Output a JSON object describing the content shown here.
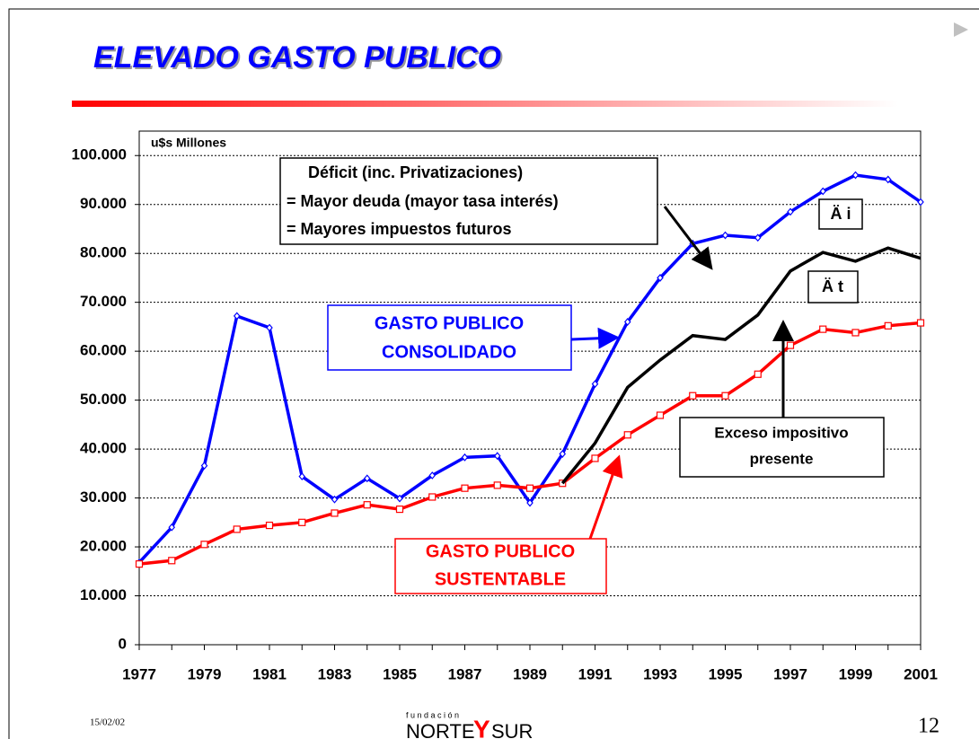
{
  "chart_data": {
    "type": "line",
    "title": "ELEVADO GASTO PUBLICO",
    "y_label": "u$s Millones",
    "x": [
      1977,
      1978,
      1979,
      1980,
      1981,
      1982,
      1983,
      1984,
      1985,
      1986,
      1987,
      1988,
      1989,
      1990,
      1991,
      1992,
      1993,
      1994,
      1995,
      1996,
      1997,
      1998,
      1999,
      2000,
      2001
    ],
    "xlim": [
      1977,
      2001
    ],
    "xticks": [
      1977,
      1979,
      1981,
      1983,
      1985,
      1987,
      1989,
      1991,
      1993,
      1995,
      1997,
      1999,
      2001
    ],
    "ylim": [
      0,
      105000
    ],
    "yticks": [
      0,
      {
        "value": 10000,
        "label": "10.000"
      },
      {
        "value": 20000,
        "label": "20.000"
      },
      {
        "value": 30000,
        "label": "30.000"
      },
      {
        "value": 40000,
        "label": "40.000"
      },
      {
        "value": 50000,
        "label": "50.000"
      },
      {
        "value": 60000,
        "label": "60.000"
      },
      {
        "value": 70000,
        "label": "70.000"
      },
      {
        "value": 80000,
        "label": "80.000"
      },
      {
        "value": 90000,
        "label": "90.000"
      },
      {
        "value": 100000,
        "label": "100.000"
      }
    ],
    "grid": true,
    "series": [
      {
        "color": "#0000ff",
        "marker": "diamond",
        "values": [
          16800,
          24000,
          36600,
          67200,
          64800,
          34400,
          29700,
          34000,
          29900,
          34600,
          38300,
          38600,
          29000,
          39000,
          53300,
          66000,
          75000,
          82000,
          83700,
          83200,
          88500,
          92700,
          96000,
          95100,
          90500
        ]
      },
      {
        "color": "#ff0000",
        "marker": "square",
        "values": [
          16500,
          17200,
          20500,
          23600,
          24400,
          25000,
          26900,
          28600,
          27700,
          30200,
          32000,
          32600,
          32000,
          33000,
          38100,
          42900,
          46900,
          50900,
          50900,
          55300,
          61200,
          64500,
          63800,
          65200,
          65800
        ]
      },
      {
        "color": "#000000",
        "values": [
          null,
          null,
          null,
          null,
          null,
          null,
          null,
          null,
          null,
          null,
          null,
          null,
          null,
          33000,
          41200,
          52600,
          58200,
          63200,
          62400,
          67400,
          76400,
          80200,
          78400,
          81100,
          79000
        ]
      }
    ],
    "annotations": [
      {
        "lines": [
          "Déficit (inc. Privatizaciones)",
          "= Mayor deuda (mayor tasa interés)",
          "= Mayores impuestos futuros"
        ]
      },
      {
        "lines": [
          "Ä i"
        ]
      },
      {
        "lines": [
          "Ä t"
        ]
      },
      {
        "lines": [
          "GASTO PUBLICO",
          "CONSOLIDADO"
        ]
      },
      {
        "lines": [
          "GASTO PUBLICO",
          "SUSTENTABLE"
        ]
      },
      {
        "lines": [
          "Exceso impositivo",
          "presente"
        ]
      }
    ]
  },
  "footer": {
    "date": "15/02/02",
    "logo_top": "f u n d a c i ó n",
    "logo_left": "NORTE",
    "logo_mid": "Y",
    "logo_right": "SUR",
    "page": "12"
  }
}
